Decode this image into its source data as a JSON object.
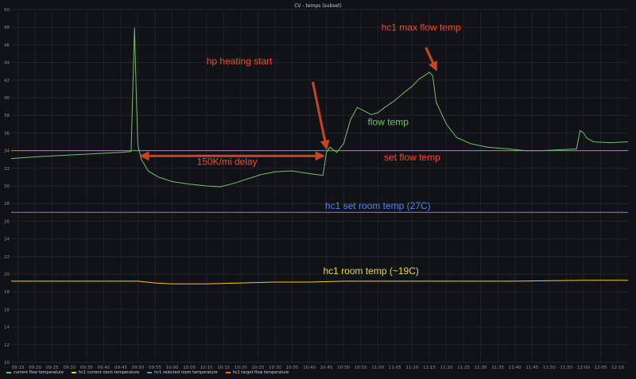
{
  "panel": {
    "title": "CV - temps (subset)"
  },
  "chart_data": {
    "type": "line",
    "xlabel": "",
    "ylabel": "",
    "ylim": [
      10,
      50
    ],
    "xlim": [
      "09:13",
      "12:13"
    ],
    "x_ticks": [
      "09:15",
      "09:20",
      "09:25",
      "09:30",
      "09:35",
      "09:40",
      "09:45",
      "09:50",
      "09:55",
      "10:00",
      "10:05",
      "10:10",
      "10:15",
      "10:20",
      "10:25",
      "10:30",
      "10:35",
      "10:40",
      "10:45",
      "10:50",
      "10:55",
      "11:00",
      "11:05",
      "11:10",
      "11:15",
      "11:20",
      "11:25",
      "11:30",
      "11:35",
      "11:40",
      "11:45",
      "11:50",
      "11:55",
      "12:00",
      "12:05",
      "12:10"
    ],
    "y_ticks": [
      10,
      12,
      14,
      16,
      18,
      20,
      22,
      24,
      26,
      28,
      30,
      32,
      34,
      36,
      38,
      40,
      42,
      44,
      46,
      48,
      50
    ],
    "grid": true,
    "legend": "bottom-left",
    "series": [
      {
        "name": "current flow temperature",
        "color": "#73bf69",
        "x": [
          "09:13",
          "09:20",
          "09:30",
          "09:40",
          "09:45",
          "09:48",
          "09:49",
          "09:49.5",
          "09:50",
          "09:51",
          "09:53",
          "09:56",
          "10:00",
          "10:05",
          "10:10",
          "10:14",
          "10:18",
          "10:22",
          "10:26",
          "10:30",
          "10:35",
          "10:40",
          "10:44",
          "10:45",
          "10:46",
          "10:48",
          "10:50",
          "10:52",
          "10:54",
          "10:56",
          "10:58",
          "11:00",
          "11:02",
          "11:05",
          "11:08",
          "11:10",
          "11:12",
          "11:14",
          "11:15",
          "11:16",
          "11:17",
          "11:20",
          "11:23",
          "11:27",
          "11:32",
          "11:38",
          "11:43",
          "11:48",
          "11:53",
          "11:58",
          "11:59",
          "12:00",
          "12:01",
          "12:03",
          "12:08",
          "12:13"
        ],
        "y": [
          33.1,
          33.3,
          33.5,
          33.7,
          33.8,
          33.9,
          47.9,
          40.5,
          34.6,
          33.0,
          31.7,
          31.0,
          30.5,
          30.2,
          30.0,
          29.9,
          30.3,
          30.8,
          31.3,
          31.6,
          31.7,
          31.4,
          31.2,
          33.8,
          34.4,
          33.8,
          34.8,
          37.5,
          38.9,
          38.5,
          38.1,
          38.3,
          38.9,
          39.7,
          40.7,
          41.3,
          42.1,
          42.6,
          42.9,
          42.5,
          39.5,
          37.0,
          35.5,
          34.8,
          34.4,
          34.2,
          34.0,
          34.0,
          34.1,
          34.2,
          36.3,
          36.0,
          35.4,
          35.0,
          34.9,
          35.0
        ]
      },
      {
        "name": "hc1 current room temperature",
        "color": "#f2cc0c",
        "x": [
          "09:13",
          "09:50",
          "09:55",
          "10:00",
          "10:10",
          "10:20",
          "10:30",
          "10:40",
          "10:50",
          "11:00",
          "11:20",
          "11:40",
          "12:00",
          "12:13"
        ],
        "y": [
          19.2,
          19.2,
          19.0,
          18.9,
          18.9,
          19.0,
          19.1,
          19.1,
          19.2,
          19.2,
          19.2,
          19.2,
          19.3,
          19.3
        ]
      },
      {
        "name": "hc1 selected room temperature",
        "color": "#5794f2",
        "x": [
          "09:13",
          "12:13"
        ],
        "y": [
          27.0,
          27.0
        ]
      },
      {
        "name": "hc1 target flow temperature",
        "color": "#ff780a",
        "x": [
          "09:13",
          "12:13"
        ],
        "y": [
          34.0,
          34.0
        ]
      }
    ],
    "annotations": [
      {
        "text": "hc1 max flow temp",
        "color": "#f2492b",
        "x": "11:01",
        "y": 47.6,
        "anchor": "start",
        "size": 12
      },
      {
        "text": "hp heating start",
        "color": "#f2492b",
        "x": "10:10",
        "y": 43.8,
        "anchor": "start",
        "size": 12
      },
      {
        "text": "flow temp",
        "color": "#73bf69",
        "x": "11:03",
        "y": 36.9,
        "anchor": "middle",
        "size": 12
      },
      {
        "text": "150K/mi delay",
        "color": "#f2492b",
        "x": "10:16",
        "y": 32.4,
        "anchor": "middle",
        "size": 12
      },
      {
        "text": "set flow temp",
        "color": "#f2492b",
        "x": "11:10",
        "y": 32.9,
        "anchor": "middle",
        "size": 12
      },
      {
        "text": "hc1 set room temp (27C)",
        "color": "#4f83e8",
        "x": "11:00",
        "y": 27.4,
        "anchor": "middle",
        "size": 12
      },
      {
        "text": "hc1 room temp (~19C)",
        "color": "#e2d93e",
        "x": "10:58",
        "y": 20.0,
        "anchor": "middle",
        "size": 12
      }
    ],
    "arrows": [
      {
        "from": [
          "11:14",
          45.7
        ],
        "to": [
          "11:17",
          43.2
        ],
        "color": "#c8461f"
      },
      {
        "from": [
          "10:41",
          41.8
        ],
        "to": [
          "10:45",
          34.3
        ],
        "color": "#c8461f"
      },
      {
        "from": [
          "09:51",
          33.4
        ],
        "to": [
          "10:44",
          33.4
        ],
        "color": "#c8461f",
        "double": true
      }
    ]
  }
}
